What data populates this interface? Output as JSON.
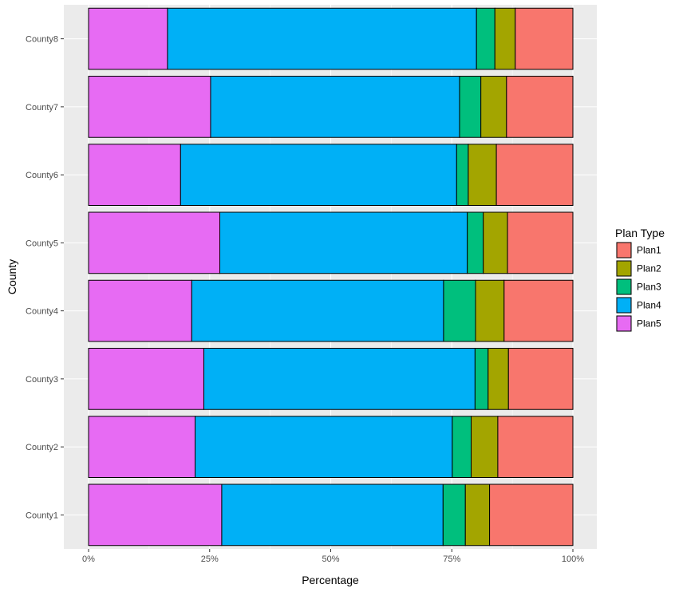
{
  "chart_data": {
    "type": "bar",
    "orientation": "horizontal",
    "stacked": true,
    "percent": true,
    "categories": [
      "County1",
      "County2",
      "County3",
      "County4",
      "County5",
      "County6",
      "County7",
      "County8"
    ],
    "series": [
      {
        "name": "Plan5",
        "color": "#E76BF3",
        "values": [
          27.5,
          22.0,
          23.8,
          21.3,
          27.1,
          19.0,
          25.2,
          16.3
        ]
      },
      {
        "name": "Plan4",
        "color": "#00B0F6",
        "values": [
          45.7,
          53.1,
          56.0,
          52.0,
          51.1,
          57.0,
          51.4,
          63.8
        ]
      },
      {
        "name": "Plan3",
        "color": "#00BF7D",
        "values": [
          4.6,
          3.9,
          2.7,
          6.6,
          3.3,
          2.4,
          4.4,
          3.8
        ]
      },
      {
        "name": "Plan2",
        "color": "#A3A500",
        "values": [
          5.0,
          5.5,
          4.2,
          5.9,
          5.0,
          5.8,
          5.3,
          4.2
        ]
      },
      {
        "name": "Plan1",
        "color": "#F8766D",
        "values": [
          17.2,
          15.5,
          13.3,
          14.2,
          13.5,
          15.8,
          13.7,
          11.9
        ]
      }
    ],
    "xlabel": "Percentage",
    "ylabel": "County",
    "xlim": [
      0,
      100
    ],
    "x_ticks": [
      "0%",
      "25%",
      "50%",
      "75%",
      "100%"
    ],
    "legend": {
      "title": "Plan Type",
      "entries": [
        "Plan1",
        "Plan2",
        "Plan3",
        "Plan4",
        "Plan5"
      ],
      "placement": "right"
    },
    "grid": true,
    "panel_background": "#EBEBEB",
    "grid_color": "#FFFFFF"
  }
}
